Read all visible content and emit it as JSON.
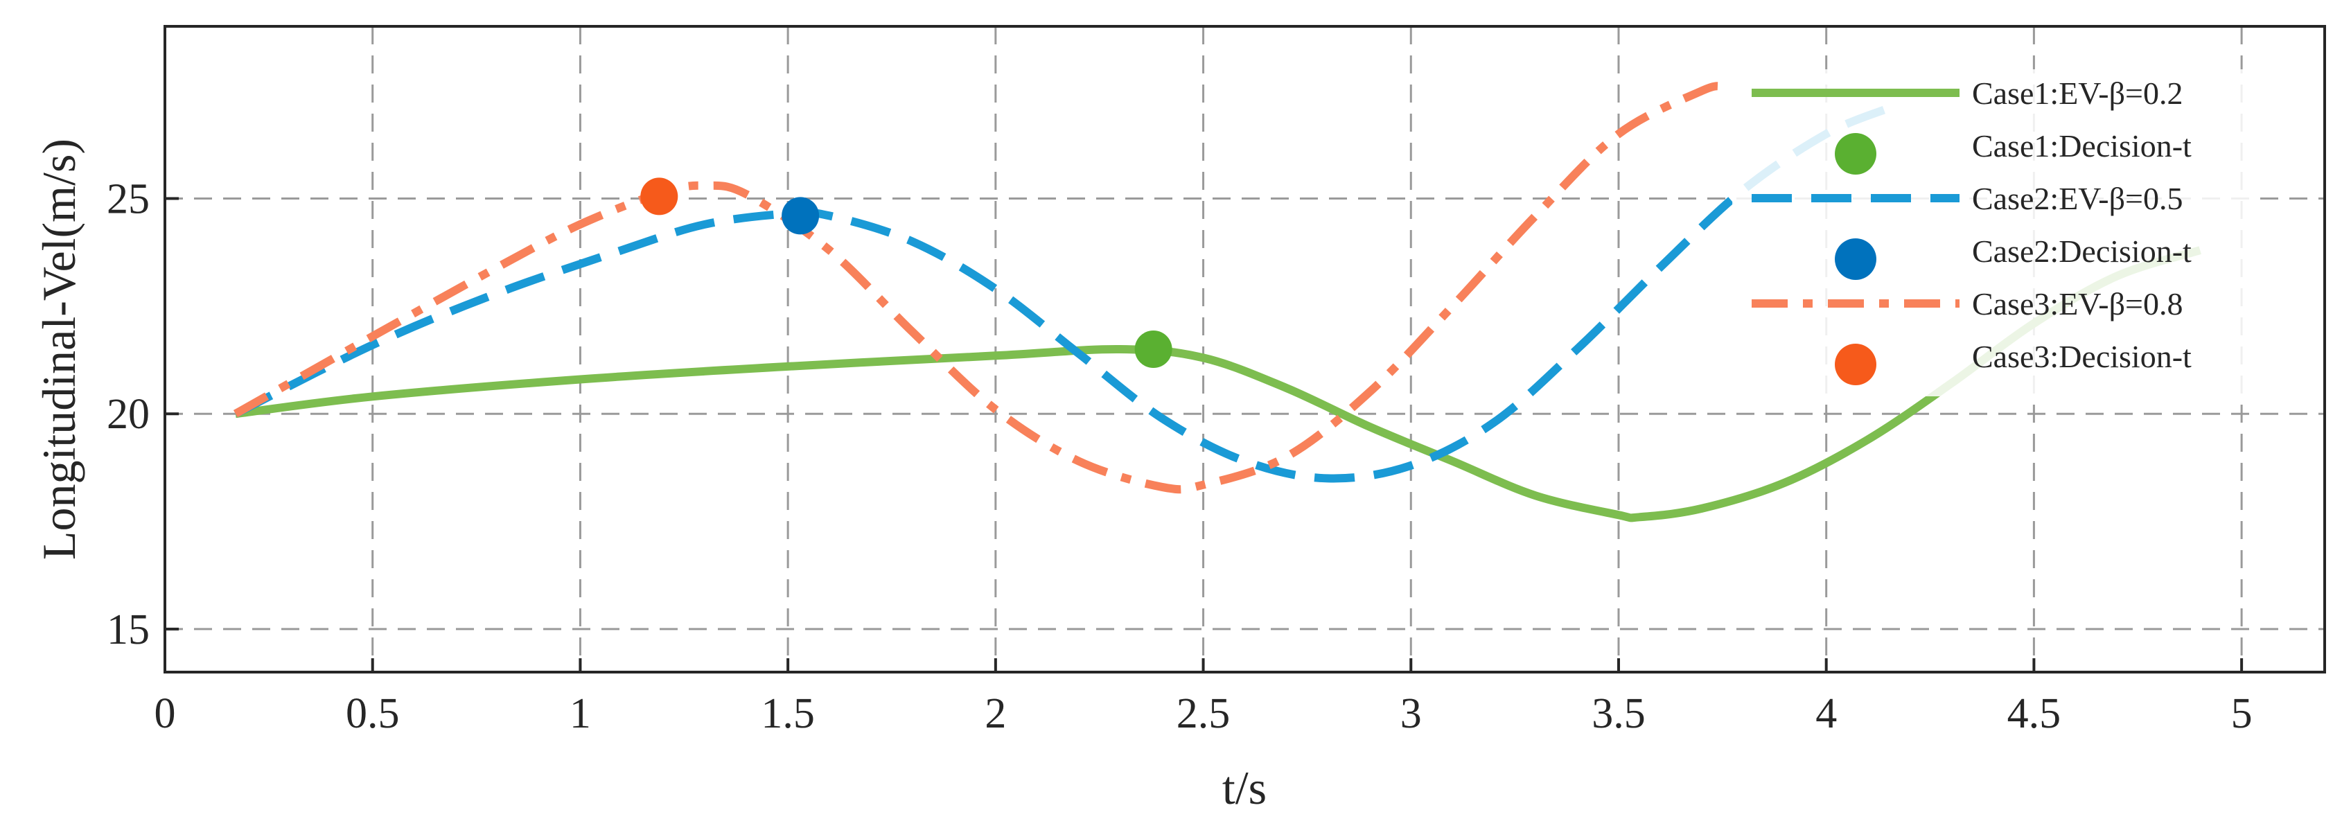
{
  "chart_data": {
    "type": "line",
    "title": "",
    "xlabel": "t/s",
    "ylabel": "Longitudinal-Vel(m/s)",
    "xlim": [
      0,
      5.2
    ],
    "ylim": [
      14,
      29
    ],
    "xticks": [
      0,
      0.5,
      1,
      1.5,
      2,
      2.5,
      3,
      3.5,
      4,
      4.5,
      5
    ],
    "xtick_labels": [
      "0",
      "0.5",
      "1",
      "1.5",
      "2",
      "2.5",
      "3",
      "3.5",
      "4",
      "4.5",
      "5"
    ],
    "yticks": [
      15,
      20,
      25
    ],
    "ytick_labels": [
      "15",
      "20",
      "25"
    ],
    "grid": true,
    "legend_position": "top-right",
    "series": [
      {
        "name": "Case1:EV-β=0.2",
        "kind": "line",
        "style": "solid",
        "color": "#7dbd4f",
        "x": [
          0.17,
          0.5,
          1.0,
          1.5,
          2.0,
          2.3,
          2.5,
          2.7,
          2.9,
          3.1,
          3.3,
          3.5,
          3.55,
          3.7,
          3.9,
          4.1,
          4.3,
          4.5,
          4.7,
          4.9
        ],
        "y": [
          20.0,
          20.4,
          20.8,
          21.1,
          21.35,
          21.5,
          21.3,
          20.6,
          19.7,
          18.9,
          18.1,
          17.65,
          17.6,
          17.8,
          18.4,
          19.4,
          20.7,
          22.1,
          23.2,
          23.8
        ]
      },
      {
        "name": "Case1:Decision-t",
        "kind": "marker",
        "color": "#5ab031",
        "x": [
          2.38
        ],
        "y": [
          21.5
        ]
      },
      {
        "name": "Case2:EV-β=0.5",
        "kind": "line",
        "style": "dashed",
        "color": "#1a9ad6",
        "x": [
          0.17,
          0.5,
          0.8,
          1.1,
          1.3,
          1.5,
          1.6,
          1.8,
          2.0,
          2.2,
          2.4,
          2.6,
          2.8,
          3.0,
          3.2,
          3.4,
          3.6,
          3.8,
          4.0,
          4.15
        ],
        "y": [
          20.0,
          21.6,
          22.8,
          23.8,
          24.4,
          24.65,
          24.6,
          24.0,
          22.9,
          21.4,
          19.9,
          18.9,
          18.5,
          18.8,
          19.8,
          21.5,
          23.4,
          25.2,
          26.5,
          27.1
        ]
      },
      {
        "name": "Case2:Decision-t",
        "kind": "marker",
        "color": "#0072bd",
        "x": [
          1.53
        ],
        "y": [
          24.6
        ]
      },
      {
        "name": "Case3:EV-β=0.8",
        "kind": "line",
        "style": "dashdot",
        "color": "#f8815a",
        "x": [
          0.17,
          0.5,
          0.8,
          1.0,
          1.2,
          1.3,
          1.4,
          1.6,
          1.8,
          2.0,
          2.2,
          2.4,
          2.5,
          2.7,
          2.9,
          3.1,
          3.3,
          3.5,
          3.7,
          3.75
        ],
        "y": [
          20.0,
          21.8,
          23.4,
          24.4,
          25.15,
          25.3,
          25.1,
          23.8,
          21.9,
          20.1,
          18.9,
          18.3,
          18.35,
          19.0,
          20.5,
          22.5,
          24.6,
          26.5,
          27.5,
          27.6
        ]
      },
      {
        "name": "Case3:Decision-t",
        "kind": "marker",
        "color": "#f65a1b",
        "x": [
          1.19
        ],
        "y": [
          25.05
        ]
      }
    ]
  }
}
